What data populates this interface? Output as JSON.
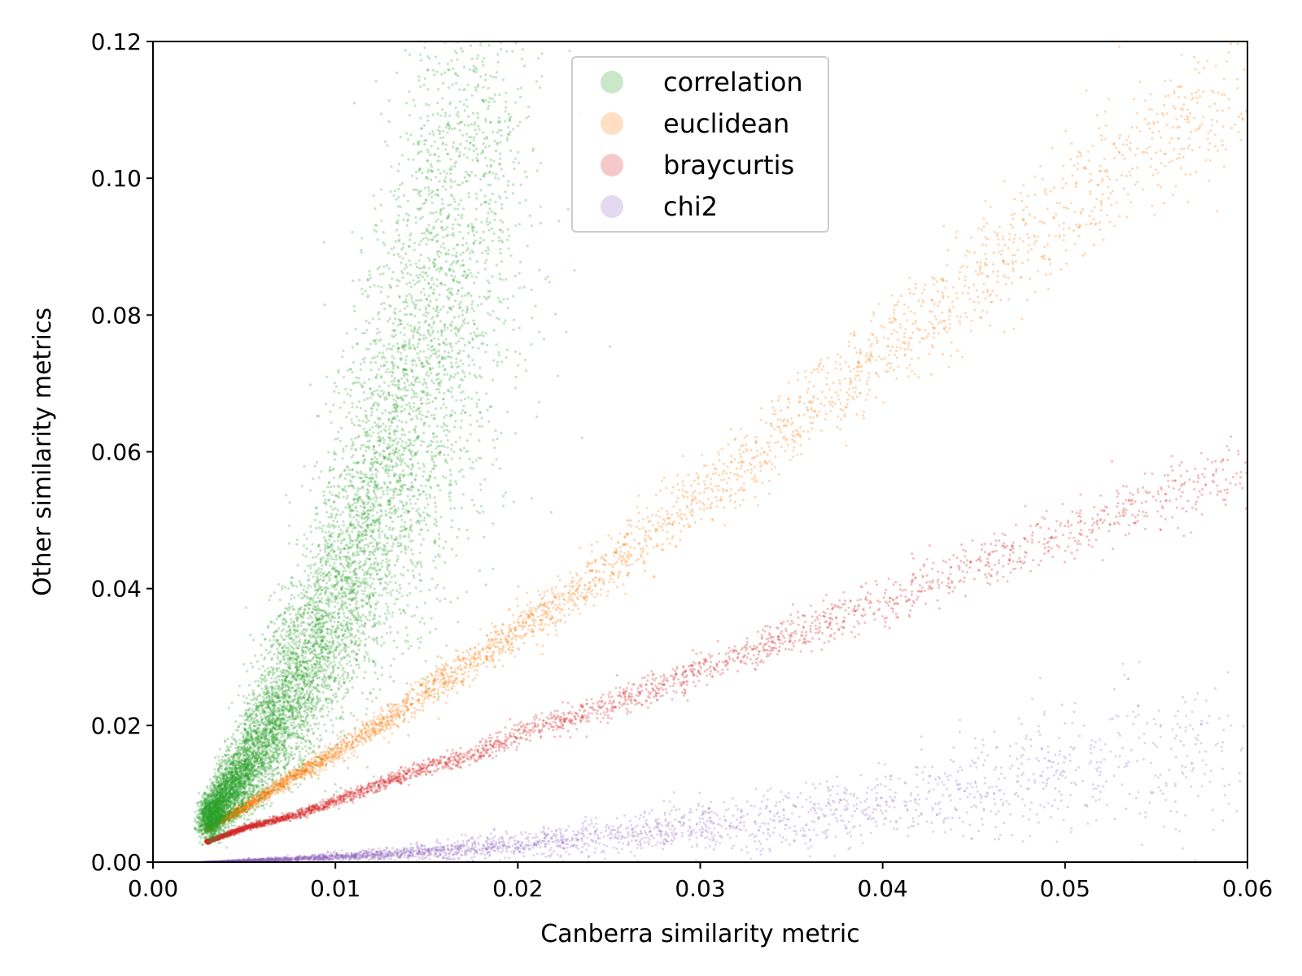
{
  "chart_data": {
    "type": "scatter",
    "title": "",
    "xlabel": "Canberra similarity metric",
    "ylabel": "Other similarity metrics",
    "xlim": [
      0.0,
      0.06
    ],
    "ylim": [
      0.0,
      0.12
    ],
    "xticks": [
      "0.00",
      "0.01",
      "0.02",
      "0.03",
      "0.04",
      "0.05",
      "0.06"
    ],
    "yticks": [
      "0.00",
      "0.02",
      "0.04",
      "0.06",
      "0.08",
      "0.10",
      "0.12"
    ],
    "grid": false,
    "legend_position": "top-center",
    "series": [
      {
        "name": "correlation",
        "color": "#2ca02c",
        "x": [
          0.003,
          0.004,
          0.005,
          0.006,
          0.007,
          0.008,
          0.009,
          0.01,
          0.011,
          0.012,
          0.013,
          0.014,
          0.015,
          0.016,
          0.017,
          0.018,
          0.019
        ],
        "y": [
          0.006,
          0.01,
          0.013,
          0.018,
          0.022,
          0.027,
          0.032,
          0.038,
          0.044,
          0.051,
          0.058,
          0.066,
          0.075,
          0.085,
          0.096,
          0.108,
          0.118
        ]
      },
      {
        "name": "euclidean",
        "color": "#ff7f0e",
        "x": [
          0.003,
          0.005,
          0.008,
          0.01,
          0.013,
          0.015,
          0.018,
          0.02,
          0.023,
          0.025,
          0.028,
          0.03,
          0.033,
          0.035,
          0.038,
          0.04,
          0.043,
          0.045,
          0.048,
          0.05,
          0.053,
          0.055,
          0.058,
          0.06
        ],
        "y": [
          0.005,
          0.008,
          0.013,
          0.016,
          0.021,
          0.025,
          0.03,
          0.034,
          0.039,
          0.043,
          0.049,
          0.054,
          0.059,
          0.064,
          0.07,
          0.075,
          0.081,
          0.085,
          0.091,
          0.096,
          0.101,
          0.105,
          0.11,
          0.114
        ]
      },
      {
        "name": "braycurtis",
        "color": "#d62728",
        "x": [
          0.003,
          0.005,
          0.008,
          0.01,
          0.013,
          0.015,
          0.018,
          0.02,
          0.023,
          0.025,
          0.028,
          0.03,
          0.033,
          0.035,
          0.038,
          0.04,
          0.043,
          0.045,
          0.048,
          0.05,
          0.053,
          0.055,
          0.058,
          0.06
        ],
        "y": [
          0.003,
          0.005,
          0.007,
          0.009,
          0.012,
          0.014,
          0.016,
          0.019,
          0.021,
          0.023,
          0.026,
          0.028,
          0.031,
          0.033,
          0.036,
          0.038,
          0.041,
          0.043,
          0.046,
          0.048,
          0.051,
          0.053,
          0.056,
          0.058
        ]
      },
      {
        "name": "chi2",
        "color": "#9467bd",
        "x": [
          0.003,
          0.005,
          0.008,
          0.01,
          0.013,
          0.015,
          0.018,
          0.02,
          0.023,
          0.025,
          0.028,
          0.03,
          0.033,
          0.035,
          0.038,
          0.04,
          0.043,
          0.045,
          0.048,
          0.05,
          0.053,
          0.055,
          0.058,
          0.06
        ],
        "y": [
          0.0,
          0.0002,
          0.0005,
          0.0008,
          0.0012,
          0.0016,
          0.0021,
          0.0026,
          0.0032,
          0.0038,
          0.0045,
          0.0052,
          0.006,
          0.0068,
          0.0077,
          0.0086,
          0.0096,
          0.0106,
          0.0117,
          0.0128,
          0.014,
          0.0152,
          0.0165,
          0.0178
        ]
      }
    ]
  }
}
